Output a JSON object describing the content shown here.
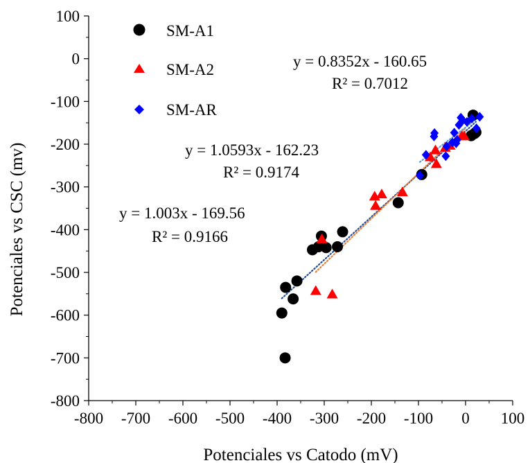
{
  "chart_data": {
    "type": "scatter",
    "xlabel": "Potenciales vs Catodo (mV)",
    "ylabel": "Potenciales vs CSC (mv)",
    "xlim": [
      -800,
      100
    ],
    "ylim": [
      -800,
      100
    ],
    "xticks": [
      "-800",
      "-700",
      "-600",
      "-500",
      "-400",
      "-300",
      "-200",
      "-100",
      "0",
      "100"
    ],
    "yticks": [
      "100",
      "0",
      "-100",
      "-200",
      "-300",
      "-400",
      "-500",
      "-600",
      "-700",
      "-800"
    ],
    "legend_position": "top-left",
    "grid": false,
    "series": [
      {
        "name": "SM-A1",
        "marker": "circle",
        "color": "#000000",
        "points": [
          [
            -390,
            -595
          ],
          [
            -383,
            -700
          ],
          [
            -382,
            -535
          ],
          [
            -366,
            -562
          ],
          [
            -358,
            -520
          ],
          [
            -325,
            -447
          ],
          [
            -312,
            -440
          ],
          [
            -306,
            -415
          ],
          [
            -296,
            -442
          ],
          [
            -272,
            -440
          ],
          [
            -261,
            -405
          ],
          [
            -143,
            -337
          ],
          [
            -93,
            -271
          ],
          [
            12,
            -180
          ],
          [
            16,
            -132
          ],
          [
            19,
            -175
          ],
          [
            22,
            -172
          ]
        ],
        "trendline": {
          "slope": 1.003,
          "intercept": -169.56,
          "x_range": [
            -390,
            22
          ],
          "color": "#1f4e9c"
        },
        "equation": "y = 1.003x - 169.56",
        "r2": "R² = 0.9166"
      },
      {
        "name": "SM-A2",
        "marker": "triangle",
        "color": "#ff0000",
        "points": [
          [
            -318,
            -543
          ],
          [
            -305,
            -422
          ],
          [
            -283,
            -551
          ],
          [
            -193,
            -322
          ],
          [
            -191,
            -344
          ],
          [
            -178,
            -317
          ],
          [
            -134,
            -312
          ],
          [
            -75,
            -230
          ],
          [
            -64,
            -214
          ],
          [
            -62,
            -246
          ],
          [
            -43,
            -208
          ],
          [
            -33,
            -203
          ],
          [
            -8,
            -181
          ],
          [
            -3,
            -181
          ]
        ],
        "trendline": {
          "slope": 1.0593,
          "intercept": -162.23,
          "x_range": [
            -318,
            0
          ],
          "color": "#ed7d31"
        },
        "equation": "y = 1.0593x - 162.23",
        "r2": "R² = 0.9174"
      },
      {
        "name": "SM-AR",
        "marker": "diamond",
        "color": "#0000ff",
        "points": [
          [
            -97,
            -273
          ],
          [
            -84,
            -225
          ],
          [
            -67,
            -182
          ],
          [
            -66,
            -174
          ],
          [
            -42,
            -228
          ],
          [
            -40,
            -205
          ],
          [
            -28,
            -196
          ],
          [
            -24,
            -173
          ],
          [
            -20,
            -198
          ],
          [
            -18,
            -190
          ],
          [
            -14,
            -155
          ],
          [
            -10,
            -138
          ],
          [
            -6,
            -144
          ],
          [
            3,
            -148
          ],
          [
            13,
            -140
          ],
          [
            23,
            -163
          ],
          [
            30,
            -136
          ]
        ],
        "trendline": {
          "slope": 0.8352,
          "intercept": -160.65,
          "x_range": [
            -97,
            30
          ],
          "color": "#5b9bd5"
        },
        "equation": "y = 0.8352x - 160.65",
        "r2": "R² = 0.7012"
      }
    ]
  }
}
